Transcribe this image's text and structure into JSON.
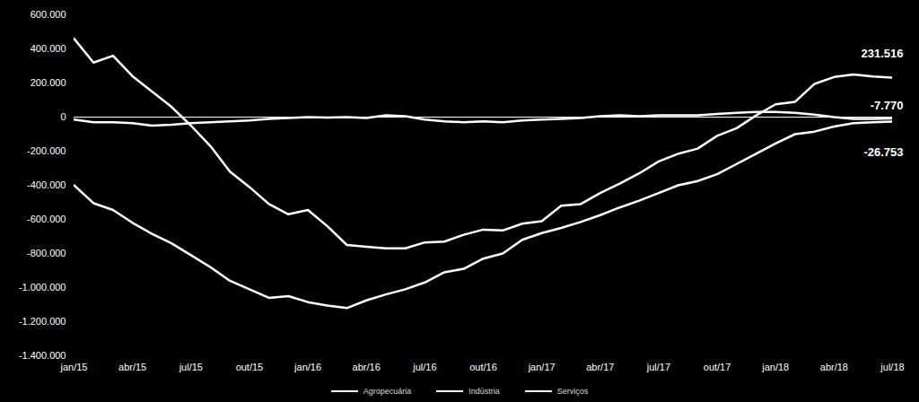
{
  "chart_data": {
    "type": "line",
    "categories": [
      "jan/15",
      null,
      null,
      "abr/15",
      null,
      null,
      "jul/15",
      null,
      null,
      "out/15",
      null,
      null,
      "jan/16",
      null,
      null,
      "abr/16",
      null,
      null,
      "jul/16",
      null,
      null,
      "out/16",
      null,
      null,
      "jan/17",
      null,
      null,
      "abr/17",
      null,
      null,
      "jul/17",
      null,
      null,
      "out/17",
      null,
      null,
      "jan/18",
      null,
      null,
      "abr/18",
      null,
      null,
      "jul/18"
    ],
    "series": [
      {
        "name": "Agropecuária",
        "color": "#ffffff",
        "values": [
          -15000,
          -30000,
          -30000,
          -35000,
          -50000,
          -45000,
          -35000,
          -30000,
          -25000,
          -20000,
          -10000,
          -5000,
          0,
          -2000,
          0,
          -5000,
          10000,
          5000,
          -15000,
          -25000,
          -30000,
          -25000,
          -30000,
          -20000,
          -15000,
          -10000,
          -5000,
          5000,
          10000,
          5000,
          10000,
          10000,
          10000,
          18000,
          25000,
          30000,
          30000,
          25000,
          15000,
          0,
          -10000,
          -10000,
          -7770
        ]
      },
      {
        "name": "Indústria",
        "color": "#ffffff",
        "values": [
          -400000,
          -505000,
          -545000,
          -620000,
          -685000,
          -740000,
          -810000,
          -880000,
          -960000,
          -1010000,
          -1060000,
          -1050000,
          -1085000,
          -1105000,
          -1120000,
          -1075000,
          -1040000,
          -1010000,
          -970000,
          -910000,
          -890000,
          -830000,
          -800000,
          -720000,
          -680000,
          -650000,
          -615000,
          -575000,
          -530000,
          -490000,
          -445000,
          -400000,
          -375000,
          -335000,
          -275000,
          -215000,
          -155000,
          -100000,
          -85000,
          -55000,
          -35000,
          -30000,
          -26753
        ]
      },
      {
        "name": "Serviços",
        "color": "#ffffff",
        "values": [
          460000,
          320000,
          360000,
          240000,
          150000,
          60000,
          -50000,
          -170000,
          -320000,
          -410000,
          -510000,
          -570000,
          -545000,
          -640000,
          -750000,
          -760000,
          -770000,
          -770000,
          -735000,
          -730000,
          -690000,
          -660000,
          -665000,
          -625000,
          -610000,
          -520000,
          -510000,
          -445000,
          -390000,
          -330000,
          -260000,
          -215000,
          -185000,
          -110000,
          -65000,
          10000,
          75000,
          90000,
          195000,
          235000,
          250000,
          238000,
          231516
        ]
      }
    ],
    "ylim": [
      -1400000,
      600000
    ],
    "yticks": [
      {
        "value": -1400000,
        "label": "-1.400.000"
      },
      {
        "value": -1200000,
        "label": "-1.200.000"
      },
      {
        "value": -1000000,
        "label": "-1.000.000"
      },
      {
        "value": -800000,
        "label": "-800.000"
      },
      {
        "value": -600000,
        "label": "-600.000"
      },
      {
        "value": -400000,
        "label": "-400.000"
      },
      {
        "value": -200000,
        "label": "-200.000"
      },
      0,
      {
        "value": 200000,
        "label": "200.000"
      },
      {
        "value": 400000,
        "label": "400.000"
      },
      {
        "value": 600000,
        "label": "600.000"
      }
    ],
    "annotations": [
      {
        "text": "231.516",
        "series": "Serviços"
      },
      {
        "text": "-7.770",
        "series": "Agropecuária"
      },
      {
        "text": "-26.753",
        "series": "Indústria"
      }
    ],
    "grid": false,
    "legend": "bottom"
  }
}
